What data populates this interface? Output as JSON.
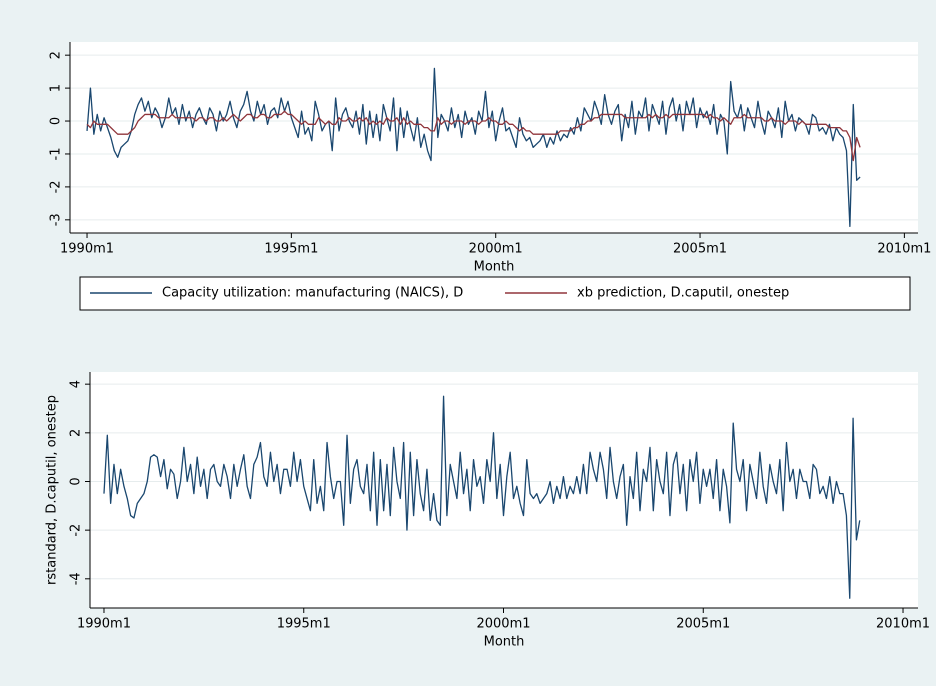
{
  "chart_data": [
    {
      "type": "line",
      "x_label": "Month",
      "xlim": [
        355,
        604
      ],
      "ylim": [
        -3.4,
        2.4
      ],
      "xticks": [
        {
          "value": 360,
          "label": "1990m1"
        },
        {
          "value": 420,
          "label": "1995m1"
        },
        {
          "value": 480,
          "label": "2000m1"
        },
        {
          "value": 540,
          "label": "2005m1"
        },
        {
          "value": 600,
          "label": "2010m1"
        }
      ],
      "yticks": [
        -3,
        -2,
        -1,
        0,
        1,
        2
      ],
      "grid": true,
      "legend": "bottom",
      "x": [
        360,
        361,
        362,
        363,
        364,
        365,
        366,
        367,
        368,
        369,
        370,
        371,
        372,
        373,
        374,
        375,
        376,
        377,
        378,
        379,
        380,
        381,
        382,
        383,
        384,
        385,
        386,
        387,
        388,
        389,
        390,
        391,
        392,
        393,
        394,
        395,
        396,
        397,
        398,
        399,
        400,
        401,
        402,
        403,
        404,
        405,
        406,
        407,
        408,
        409,
        410,
        411,
        412,
        413,
        414,
        415,
        416,
        417,
        418,
        419,
        420,
        421,
        422,
        423,
        424,
        425,
        426,
        427,
        428,
        429,
        430,
        431,
        432,
        433,
        434,
        435,
        436,
        437,
        438,
        439,
        440,
        441,
        442,
        443,
        444,
        445,
        446,
        447,
        448,
        449,
        450,
        451,
        452,
        453,
        454,
        455,
        456,
        457,
        458,
        459,
        460,
        461,
        462,
        463,
        464,
        465,
        466,
        467,
        468,
        469,
        470,
        471,
        472,
        473,
        474,
        475,
        476,
        477,
        478,
        479,
        480,
        481,
        482,
        483,
        484,
        485,
        486,
        487,
        488,
        489,
        490,
        491,
        492,
        493,
        494,
        495,
        496,
        497,
        498,
        499,
        500,
        501,
        502,
        503,
        504,
        505,
        506,
        507,
        508,
        509,
        510,
        511,
        512,
        513,
        514,
        515,
        516,
        517,
        518,
        519,
        520,
        521,
        522,
        523,
        524,
        525,
        526,
        527,
        528,
        529,
        530,
        531,
        532,
        533,
        534,
        535,
        536,
        537,
        538,
        539,
        540,
        541,
        542,
        543,
        544,
        545,
        546,
        547,
        548,
        549,
        550,
        551,
        552,
        553,
        554,
        555,
        556,
        557,
        558,
        559,
        560,
        561,
        562,
        563,
        564,
        565,
        566,
        567,
        568,
        569,
        570,
        571,
        572,
        573,
        574,
        575,
        576,
        577,
        578,
        579,
        580,
        581,
        582,
        583,
        584,
        585,
        586,
        587
      ],
      "series": [
        {
          "name": "Capacity utilization: manufacturing (NAICS), D",
          "color": "#1a476f",
          "values": [
            -0.3,
            1.0,
            -0.4,
            0.2,
            -0.3,
            0.1,
            -0.2,
            -0.5,
            -0.9,
            -1.1,
            -0.8,
            -0.7,
            -0.6,
            -0.3,
            0.2,
            0.5,
            0.7,
            0.3,
            0.6,
            0.1,
            0.4,
            0.2,
            -0.2,
            0.1,
            0.7,
            0.2,
            0.4,
            -0.1,
            0.5,
            0.0,
            0.3,
            -0.2,
            0.2,
            0.4,
            0.1,
            -0.1,
            0.4,
            0.2,
            -0.3,
            0.3,
            0.0,
            0.2,
            0.6,
            0.1,
            -0.2,
            0.3,
            0.5,
            0.9,
            0.3,
            0.0,
            0.6,
            0.2,
            0.5,
            -0.1,
            0.3,
            0.4,
            0.1,
            0.7,
            0.3,
            0.6,
            0.1,
            -0.2,
            -0.5,
            0.3,
            -0.4,
            -0.2,
            -0.6,
            0.6,
            0.2,
            -0.3,
            -0.1,
            0.0,
            -0.9,
            0.7,
            -0.3,
            0.2,
            0.4,
            0.0,
            -0.2,
            0.3,
            -0.4,
            0.5,
            -0.7,
            0.3,
            -0.5,
            0.2,
            -0.6,
            0.5,
            0.1,
            -0.3,
            0.7,
            -0.9,
            0.4,
            -0.5,
            0.3,
            -0.2,
            -0.6,
            0.1,
            -0.8,
            -0.4,
            -0.9,
            -1.2,
            1.6,
            -0.5,
            0.2,
            0.0,
            -0.3,
            0.4,
            -0.2,
            0.2,
            -0.5,
            0.3,
            -0.1,
            0.1,
            -0.4,
            0.3,
            0.0,
            0.9,
            -0.2,
            0.3,
            -0.6,
            0.0,
            0.4,
            -0.3,
            -0.2,
            -0.5,
            -0.8,
            0.1,
            -0.4,
            -0.6,
            -0.5,
            -0.8,
            -0.7,
            -0.6,
            -0.4,
            -0.8,
            -0.5,
            -0.7,
            -0.3,
            -0.6,
            -0.4,
            -0.5,
            -0.2,
            -0.4,
            0.1,
            -0.3,
            0.4,
            0.2,
            0.0,
            0.6,
            0.3,
            -0.1,
            0.8,
            0.2,
            -0.1,
            0.3,
            0.5,
            -0.6,
            0.2,
            -0.2,
            0.6,
            -0.4,
            0.3,
            0.1,
            0.7,
            -0.3,
            0.5,
            0.2,
            -0.1,
            0.6,
            -0.4,
            0.4,
            0.7,
            0.0,
            0.5,
            -0.3,
            0.6,
            0.2,
            0.7,
            -0.2,
            0.4,
            0.1,
            0.3,
            -0.1,
            0.5,
            -0.4,
            0.2,
            0.0,
            -1.0,
            1.2,
            0.3,
            0.1,
            0.5,
            -0.3,
            0.4,
            0.1,
            -0.2,
            0.6,
            0.0,
            -0.4,
            0.3,
            0.1,
            -0.2,
            0.4,
            -0.5,
            0.6,
            0.0,
            0.2,
            -0.3,
            0.1,
            0.0,
            -0.1,
            -0.4,
            0.2,
            0.1,
            -0.3,
            -0.2,
            -0.4,
            -0.1,
            -0.6,
            -0.2,
            -0.4,
            -0.5,
            -0.9,
            -3.2,
            0.5,
            -1.8,
            -1.7
          ]
        },
        {
          "name": "xb prediction, D.caputil, onestep",
          "color": "#90353b",
          "values": [
            -0.1,
            -0.2,
            0.0,
            -0.1,
            -0.1,
            -0.1,
            -0.1,
            -0.2,
            -0.3,
            -0.4,
            -0.4,
            -0.4,
            -0.4,
            -0.3,
            -0.2,
            0.0,
            0.1,
            0.2,
            0.2,
            0.2,
            0.2,
            0.1,
            0.1,
            0.1,
            0.1,
            0.2,
            0.1,
            0.1,
            0.1,
            0.1,
            0.1,
            0.1,
            0.0,
            0.1,
            0.1,
            0.0,
            0.1,
            0.1,
            0.0,
            0.0,
            0.1,
            0.0,
            0.1,
            0.2,
            0.1,
            0.0,
            0.1,
            0.2,
            0.2,
            0.1,
            0.1,
            0.2,
            0.2,
            0.1,
            0.1,
            0.2,
            0.2,
            0.2,
            0.3,
            0.2,
            0.2,
            0.1,
            0.0,
            -0.1,
            0.0,
            -0.1,
            -0.1,
            -0.1,
            0.1,
            0.0,
            -0.1,
            0.0,
            -0.1,
            -0.1,
            0.1,
            0.0,
            0.0,
            0.1,
            0.0,
            0.0,
            0.1,
            0.0,
            0.1,
            -0.1,
            0.0,
            -0.1,
            0.0,
            -0.1,
            0.1,
            0.0,
            0.0,
            0.1,
            -0.1,
            0.1,
            -0.1,
            0.0,
            -0.1,
            -0.1,
            -0.1,
            -0.2,
            -0.2,
            -0.3,
            -0.3,
            0.1,
            -0.1,
            0.0,
            0.0,
            -0.1,
            0.0,
            0.0,
            0.0,
            -0.1,
            0.0,
            0.0,
            0.0,
            -0.1,
            0.0,
            0.0,
            0.1,
            0.0,
            0.0,
            -0.1,
            -0.1,
            0.0,
            -0.1,
            -0.1,
            -0.2,
            -0.3,
            -0.2,
            -0.3,
            -0.3,
            -0.4,
            -0.4,
            -0.4,
            -0.4,
            -0.4,
            -0.4,
            -0.4,
            -0.4,
            -0.3,
            -0.3,
            -0.3,
            -0.3,
            -0.2,
            -0.2,
            -0.1,
            -0.1,
            0.0,
            0.0,
            0.1,
            0.1,
            0.2,
            0.2,
            0.2,
            0.2,
            0.2,
            0.2,
            0.2,
            0.1,
            0.1,
            0.1,
            0.1,
            0.1,
            0.1,
            0.1,
            0.2,
            0.1,
            0.2,
            0.1,
            0.1,
            0.2,
            0.1,
            0.2,
            0.2,
            0.2,
            0.2,
            0.2,
            0.2,
            0.2,
            0.2,
            0.2,
            0.2,
            0.1,
            0.2,
            0.1,
            0.1,
            0.0,
            0.1,
            0.0,
            -0.1,
            0.1,
            0.1,
            0.1,
            0.2,
            0.1,
            0.1,
            0.1,
            0.1,
            0.1,
            0.0,
            0.0,
            0.1,
            0.0,
            0.0,
            0.0,
            -0.1,
            0.0,
            0.0,
            0.0,
            -0.1,
            0.0,
            -0.1,
            -0.1,
            -0.1,
            -0.1,
            -0.1,
            -0.1,
            -0.1,
            -0.2,
            -0.2,
            -0.2,
            -0.2,
            -0.3,
            -0.3,
            -0.5,
            -1.2,
            -0.5,
            -0.8
          ]
        }
      ]
    },
    {
      "type": "line",
      "x_label": "Month",
      "y_label": "rstandard, D.caputil, onestep",
      "xlim": [
        355.8,
        604.5
      ],
      "ylim": [
        -5.2,
        4.5
      ],
      "xticks": [
        {
          "value": 360,
          "label": "1990m1"
        },
        {
          "value": 420,
          "label": "1995m1"
        },
        {
          "value": 480,
          "label": "2000m1"
        },
        {
          "value": 540,
          "label": "2005m1"
        },
        {
          "value": 600,
          "label": "2010m1"
        }
      ],
      "yticks": [
        -4,
        -2,
        0,
        2,
        4
      ],
      "grid": true,
      "x": [
        360,
        361,
        362,
        363,
        364,
        365,
        366,
        367,
        368,
        369,
        370,
        371,
        372,
        373,
        374,
        375,
        376,
        377,
        378,
        379,
        380,
        381,
        382,
        383,
        384,
        385,
        386,
        387,
        388,
        389,
        390,
        391,
        392,
        393,
        394,
        395,
        396,
        397,
        398,
        399,
        400,
        401,
        402,
        403,
        404,
        405,
        406,
        407,
        408,
        409,
        410,
        411,
        412,
        413,
        414,
        415,
        416,
        417,
        418,
        419,
        420,
        421,
        422,
        423,
        424,
        425,
        426,
        427,
        428,
        429,
        430,
        431,
        432,
        433,
        434,
        435,
        436,
        437,
        438,
        439,
        440,
        441,
        442,
        443,
        444,
        445,
        446,
        447,
        448,
        449,
        450,
        451,
        452,
        453,
        454,
        455,
        456,
        457,
        458,
        459,
        460,
        461,
        462,
        463,
        464,
        465,
        466,
        467,
        468,
        469,
        470,
        471,
        472,
        473,
        474,
        475,
        476,
        477,
        478,
        479,
        480,
        481,
        482,
        483,
        484,
        485,
        486,
        487,
        488,
        489,
        490,
        491,
        492,
        493,
        494,
        495,
        496,
        497,
        498,
        499,
        500,
        501,
        502,
        503,
        504,
        505,
        506,
        507,
        508,
        509,
        510,
        511,
        512,
        513,
        514,
        515,
        516,
        517,
        518,
        519,
        520,
        521,
        522,
        523,
        524,
        525,
        526,
        527,
        528,
        529,
        530,
        531,
        532,
        533,
        534,
        535,
        536,
        537,
        538,
        539,
        540,
        541,
        542,
        543,
        544,
        545,
        546,
        547,
        548,
        549,
        550,
        551,
        552,
        553,
        554,
        555,
        556,
        557,
        558,
        559,
        560,
        561,
        562,
        563,
        564,
        565,
        566,
        567,
        568,
        569,
        570,
        571,
        572,
        573,
        574,
        575,
        576,
        577,
        578,
        579,
        580,
        581,
        582,
        583,
        584,
        585,
        586,
        587
      ],
      "series": [
        {
          "color": "#1a476f",
          "values": [
            -0.5,
            1.9,
            -0.9,
            0.7,
            -0.5,
            0.5,
            -0.2,
            -0.7,
            -1.4,
            -1.5,
            -0.9,
            -0.7,
            -0.5,
            0.0,
            1.0,
            1.1,
            1.0,
            0.2,
            0.9,
            -0.3,
            0.5,
            0.3,
            -0.7,
            0.0,
            1.4,
            0.0,
            0.7,
            -0.5,
            1.0,
            -0.2,
            0.5,
            -0.7,
            0.5,
            0.7,
            0.0,
            -0.2,
            0.7,
            0.2,
            -0.7,
            0.7,
            -0.2,
            0.5,
            1.1,
            -0.2,
            -0.7,
            0.7,
            1.0,
            1.6,
            0.2,
            -0.2,
            1.2,
            0.0,
            0.7,
            -0.5,
            0.5,
            0.5,
            -0.2,
            1.2,
            0.0,
            0.9,
            -0.2,
            -0.7,
            -1.2,
            0.9,
            -0.9,
            -0.2,
            -1.2,
            1.6,
            0.2,
            -0.7,
            0.0,
            0.0,
            -1.8,
            1.9,
            -0.9,
            0.5,
            0.9,
            -0.2,
            -0.5,
            0.7,
            -1.2,
            1.2,
            -1.8,
            0.9,
            -1.2,
            0.7,
            -1.4,
            1.4,
            0.0,
            -0.7,
            1.6,
            -2.0,
            1.2,
            -1.4,
            0.9,
            -0.5,
            -1.2,
            0.5,
            -1.6,
            -0.5,
            -1.6,
            -1.8,
            3.5,
            -1.4,
            0.7,
            0.0,
            -0.7,
            1.2,
            -0.5,
            0.5,
            -1.2,
            0.9,
            -0.2,
            0.2,
            -0.9,
            0.9,
            0.0,
            2.0,
            -0.7,
            0.7,
            -1.4,
            0.2,
            1.2,
            -0.7,
            -0.2,
            -0.9,
            -1.4,
            0.9,
            -0.5,
            -0.7,
            -0.5,
            -0.9,
            -0.7,
            -0.5,
            0.0,
            -0.9,
            -0.2,
            -0.7,
            0.2,
            -0.7,
            -0.2,
            -0.5,
            0.2,
            -0.5,
            0.7,
            -0.5,
            1.2,
            0.5,
            0.0,
            1.2,
            0.5,
            -0.7,
            1.4,
            0.0,
            -0.7,
            0.2,
            0.7,
            -1.8,
            0.2,
            -0.7,
            1.2,
            -1.2,
            0.5,
            0.0,
            1.4,
            -1.2,
            0.9,
            0.0,
            -0.5,
            1.2,
            -1.4,
            0.7,
            1.2,
            -0.5,
            0.7,
            -1.2,
            0.9,
            0.0,
            1.2,
            -0.9,
            0.5,
            -0.2,
            0.5,
            -0.7,
            0.9,
            -1.2,
            0.5,
            -0.2,
            -1.7,
            2.4,
            0.5,
            0.0,
            0.9,
            -1.2,
            0.7,
            0.0,
            -0.7,
            1.2,
            -0.2,
            -0.9,
            0.7,
            0.0,
            -0.5,
            0.9,
            -1.2,
            1.6,
            0.0,
            0.5,
            -0.7,
            0.5,
            0.0,
            0.0,
            -0.7,
            0.7,
            0.5,
            -0.5,
            -0.2,
            -0.7,
            0.2,
            -0.9,
            0.0,
            -0.5,
            -0.5,
            -1.4,
            -4.8,
            2.6,
            -2.4,
            -1.6
          ]
        }
      ]
    }
  ]
}
